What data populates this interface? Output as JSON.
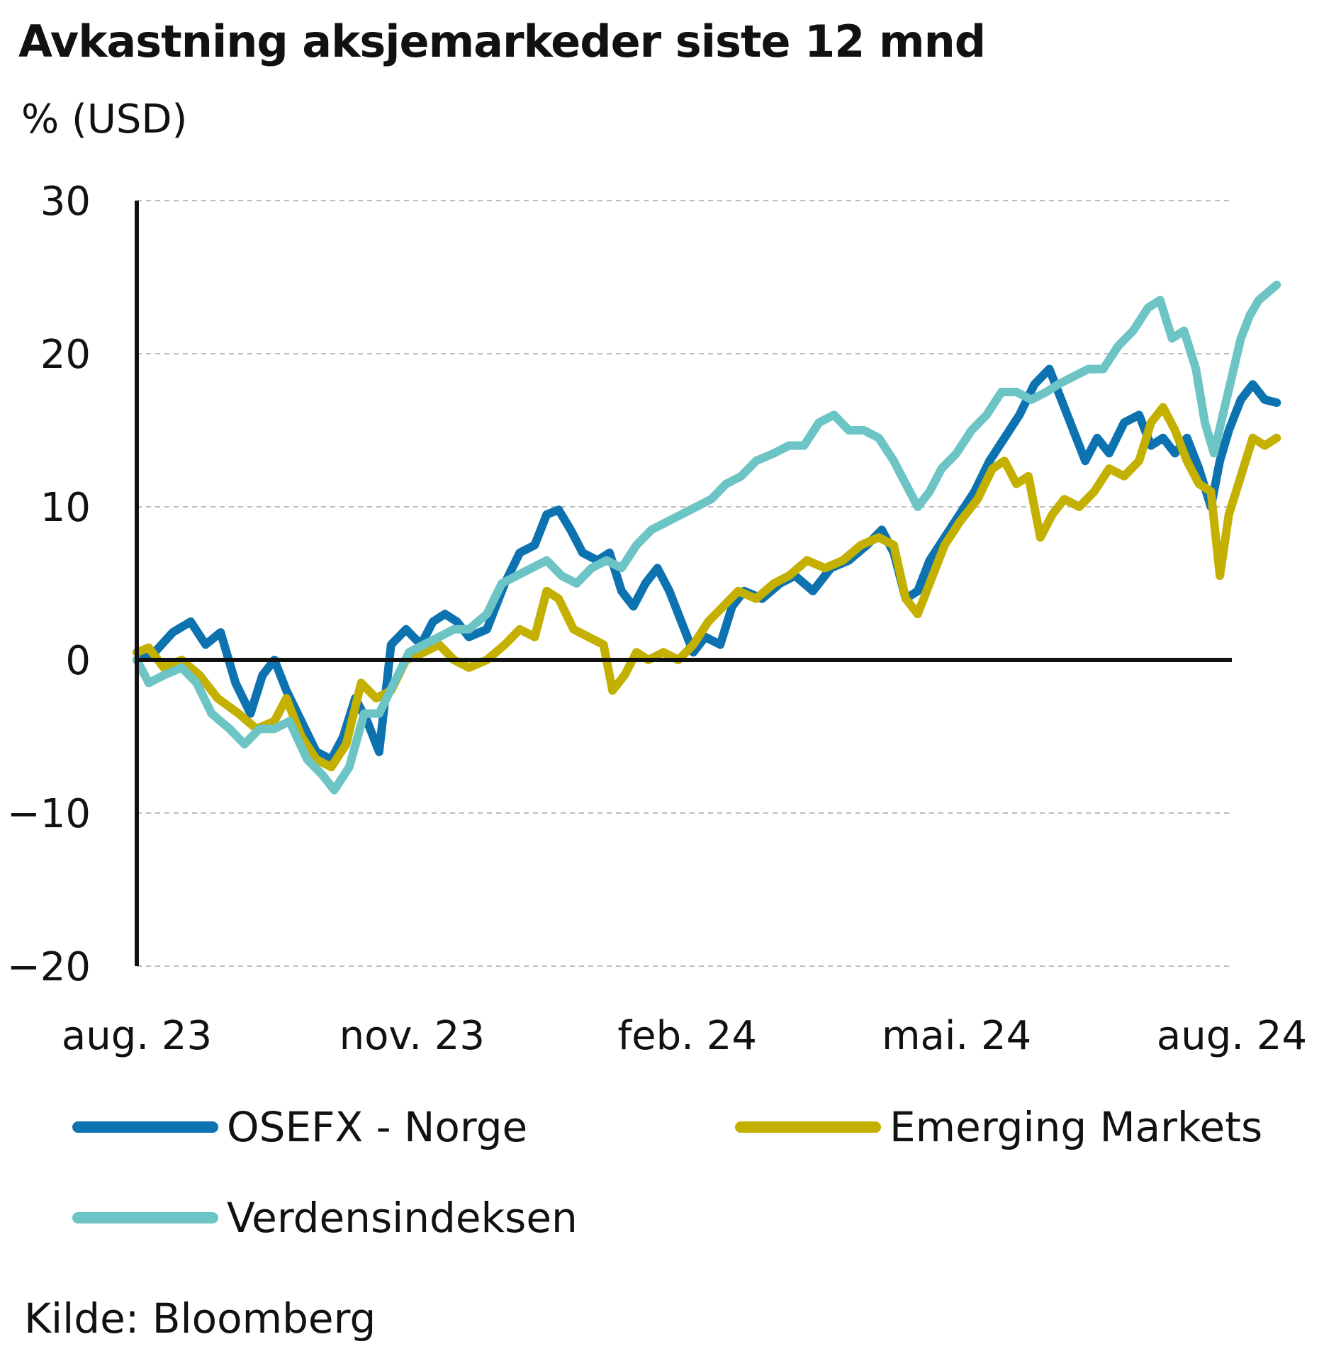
{
  "header": {
    "title": "Avkastning aksjemarkeder siste 12 mnd",
    "unit": "% (USD)"
  },
  "footer": {
    "source": "Kilde: Bloomberg"
  },
  "chart_data": {
    "type": "line",
    "title": "Avkastning aksjemarkeder siste 12 mnd",
    "ylabel": "% (USD)",
    "xlabel": "",
    "ylim": [
      -20,
      30
    ],
    "yticks": [
      30,
      20,
      10,
      0,
      -10,
      -20
    ],
    "xlim": [
      "2023-08-01",
      "2024-08-01"
    ],
    "xticks": [
      {
        "date": "2023-08-01",
        "label": "aug. 23"
      },
      {
        "date": "2023-11-01",
        "label": "nov. 23"
      },
      {
        "date": "2024-02-01",
        "label": "feb. 24"
      },
      {
        "date": "2024-05-01",
        "label": "mai. 24"
      },
      {
        "date": "2024-08-01",
        "label": "aug. 24"
      }
    ],
    "grid": "horizontal dashed",
    "legend_position": "bottom",
    "series": [
      {
        "name": "OSEFX - Norge",
        "color": "#0d72b0",
        "points": [
          [
            "2023-08-01",
            0
          ],
          [
            "2023-08-07",
            0.5
          ],
          [
            "2023-08-13",
            1.8
          ],
          [
            "2023-08-19",
            2.5
          ],
          [
            "2023-08-24",
            1.0
          ],
          [
            "2023-08-29",
            1.8
          ],
          [
            "2023-09-03",
            -1.5
          ],
          [
            "2023-09-08",
            -3.5
          ],
          [
            "2023-09-12",
            -1.0
          ],
          [
            "2023-09-16",
            0
          ],
          [
            "2023-09-20",
            -2.0
          ],
          [
            "2023-09-25",
            -4.0
          ],
          [
            "2023-09-30",
            -6.0
          ],
          [
            "2023-10-05",
            -6.5
          ],
          [
            "2023-10-09",
            -5.0
          ],
          [
            "2023-10-13",
            -2.5
          ],
          [
            "2023-10-17",
            -4.0
          ],
          [
            "2023-10-21",
            -6.0
          ],
          [
            "2023-10-25",
            1.0
          ],
          [
            "2023-10-30",
            2.0
          ],
          [
            "2023-11-04",
            1.0
          ],
          [
            "2023-11-08",
            2.5
          ],
          [
            "2023-11-12",
            3.0
          ],
          [
            "2023-11-16",
            2.5
          ],
          [
            "2023-11-20",
            1.5
          ],
          [
            "2023-11-26",
            2.0
          ],
          [
            "2023-12-02",
            5.0
          ],
          [
            "2023-12-07",
            7.0
          ],
          [
            "2023-12-12",
            7.5
          ],
          [
            "2023-12-16",
            9.5
          ],
          [
            "2023-12-20",
            9.8
          ],
          [
            "2023-12-24",
            8.5
          ],
          [
            "2023-12-28",
            7.0
          ],
          [
            "2024-01-02",
            6.5
          ],
          [
            "2024-01-06",
            7.0
          ],
          [
            "2024-01-10",
            4.5
          ],
          [
            "2024-01-14",
            3.5
          ],
          [
            "2024-01-18",
            5.0
          ],
          [
            "2024-01-22",
            6.0
          ],
          [
            "2024-01-26",
            4.5
          ],
          [
            "2024-01-30",
            2.5
          ],
          [
            "2024-02-03",
            0.5
          ],
          [
            "2024-02-07",
            1.5
          ],
          [
            "2024-02-12",
            1.0
          ],
          [
            "2024-02-16",
            3.5
          ],
          [
            "2024-02-20",
            4.5
          ],
          [
            "2024-02-26",
            4.0
          ],
          [
            "2024-03-03",
            5.0
          ],
          [
            "2024-03-08",
            5.5
          ],
          [
            "2024-03-14",
            4.5
          ],
          [
            "2024-03-20",
            6.0
          ],
          [
            "2024-03-26",
            6.5
          ],
          [
            "2024-04-01",
            7.5
          ],
          [
            "2024-04-06",
            8.5
          ],
          [
            "2024-04-10",
            7.0
          ],
          [
            "2024-04-14",
            4.0
          ],
          [
            "2024-04-18",
            4.5
          ],
          [
            "2024-04-22",
            6.5
          ],
          [
            "2024-04-27",
            8.0
          ],
          [
            "2024-05-02",
            9.5
          ],
          [
            "2024-05-07",
            11.0
          ],
          [
            "2024-05-12",
            13.0
          ],
          [
            "2024-05-17",
            14.5
          ],
          [
            "2024-05-22",
            16.0
          ],
          [
            "2024-05-27",
            18.0
          ],
          [
            "2024-06-01",
            19.0
          ],
          [
            "2024-06-05",
            17.0
          ],
          [
            "2024-06-09",
            15.0
          ],
          [
            "2024-06-13",
            13.0
          ],
          [
            "2024-06-17",
            14.5
          ],
          [
            "2024-06-21",
            13.5
          ],
          [
            "2024-06-26",
            15.5
          ],
          [
            "2024-07-01",
            16.0
          ],
          [
            "2024-07-05",
            14.0
          ],
          [
            "2024-07-09",
            14.5
          ],
          [
            "2024-07-13",
            13.5
          ],
          [
            "2024-07-17",
            14.5
          ],
          [
            "2024-07-21",
            12.5
          ],
          [
            "2024-07-25",
            10.0
          ],
          [
            "2024-07-28",
            13.0
          ],
          [
            "2024-07-31",
            15.0
          ],
          [
            "2024-08-04",
            17.0
          ],
          [
            "2024-08-08",
            18.0
          ],
          [
            "2024-08-12",
            17.0
          ],
          [
            "2024-08-16",
            16.8
          ]
        ]
      },
      {
        "name": "Emerging Markets",
        "color": "#c4b000",
        "points": [
          [
            "2023-08-01",
            0.5
          ],
          [
            "2023-08-05",
            0.8
          ],
          [
            "2023-08-10",
            -0.5
          ],
          [
            "2023-08-16",
            0
          ],
          [
            "2023-08-22",
            -1.0
          ],
          [
            "2023-08-28",
            -2.5
          ],
          [
            "2023-09-04",
            -3.5
          ],
          [
            "2023-09-10",
            -4.5
          ],
          [
            "2023-09-16",
            -4.0
          ],
          [
            "2023-09-20",
            -2.5
          ],
          [
            "2023-09-25",
            -5.0
          ],
          [
            "2023-09-30",
            -6.5
          ],
          [
            "2023-10-05",
            -7.0
          ],
          [
            "2023-10-10",
            -5.5
          ],
          [
            "2023-10-15",
            -1.5
          ],
          [
            "2023-10-20",
            -2.5
          ],
          [
            "2023-10-25",
            -2.0
          ],
          [
            "2023-10-30",
            0
          ],
          [
            "2023-11-05",
            0.5
          ],
          [
            "2023-11-10",
            1.0
          ],
          [
            "2023-11-15",
            0
          ],
          [
            "2023-11-20",
            -0.5
          ],
          [
            "2023-11-26",
            0
          ],
          [
            "2023-12-02",
            1.0
          ],
          [
            "2023-12-07",
            2.0
          ],
          [
            "2023-12-12",
            1.5
          ],
          [
            "2023-12-16",
            4.5
          ],
          [
            "2023-12-20",
            4.0
          ],
          [
            "2023-12-25",
            2.0
          ],
          [
            "2023-12-30",
            1.5
          ],
          [
            "2024-01-04",
            1.0
          ],
          [
            "2024-01-07",
            -2.0
          ],
          [
            "2024-01-11",
            -1.0
          ],
          [
            "2024-01-15",
            0.5
          ],
          [
            "2024-01-19",
            0
          ],
          [
            "2024-01-24",
            0.5
          ],
          [
            "2024-01-29",
            0
          ],
          [
            "2024-02-03",
            1.0
          ],
          [
            "2024-02-08",
            2.5
          ],
          [
            "2024-02-13",
            3.5
          ],
          [
            "2024-02-18",
            4.5
          ],
          [
            "2024-02-24",
            4.0
          ],
          [
            "2024-03-01",
            5.0
          ],
          [
            "2024-03-06",
            5.5
          ],
          [
            "2024-03-12",
            6.5
          ],
          [
            "2024-03-18",
            6.0
          ],
          [
            "2024-03-24",
            6.5
          ],
          [
            "2024-03-30",
            7.5
          ],
          [
            "2024-04-05",
            8.0
          ],
          [
            "2024-04-10",
            7.5
          ],
          [
            "2024-04-14",
            4.0
          ],
          [
            "2024-04-18",
            3.0
          ],
          [
            "2024-04-22",
            5.0
          ],
          [
            "2024-04-27",
            7.5
          ],
          [
            "2024-05-02",
            9.0
          ],
          [
            "2024-05-08",
            10.5
          ],
          [
            "2024-05-13",
            12.5
          ],
          [
            "2024-05-17",
            13.0
          ],
          [
            "2024-05-21",
            11.5
          ],
          [
            "2024-05-25",
            12.0
          ],
          [
            "2024-05-29",
            8.0
          ],
          [
            "2024-06-02",
            9.5
          ],
          [
            "2024-06-06",
            10.5
          ],
          [
            "2024-06-11",
            10.0
          ],
          [
            "2024-06-16",
            11.0
          ],
          [
            "2024-06-21",
            12.5
          ],
          [
            "2024-06-26",
            12.0
          ],
          [
            "2024-07-01",
            13.0
          ],
          [
            "2024-07-05",
            15.5
          ],
          [
            "2024-07-09",
            16.5
          ],
          [
            "2024-07-13",
            15.0
          ],
          [
            "2024-07-17",
            13.0
          ],
          [
            "2024-07-21",
            11.5
          ],
          [
            "2024-07-25",
            11.0
          ],
          [
            "2024-07-28",
            5.5
          ],
          [
            "2024-07-31",
            9.5
          ],
          [
            "2024-08-04",
            12.0
          ],
          [
            "2024-08-08",
            14.5
          ],
          [
            "2024-08-12",
            14.0
          ],
          [
            "2024-08-16",
            14.5
          ]
        ]
      },
      {
        "name": "Verdensindeksen",
        "color": "#6cc4c4",
        "points": [
          [
            "2023-08-01",
            0
          ],
          [
            "2023-08-05",
            -1.5
          ],
          [
            "2023-08-10",
            -1.0
          ],
          [
            "2023-08-16",
            -0.5
          ],
          [
            "2023-08-21",
            -1.5
          ],
          [
            "2023-08-26",
            -3.5
          ],
          [
            "2023-09-01",
            -4.5
          ],
          [
            "2023-09-06",
            -5.5
          ],
          [
            "2023-09-11",
            -4.5
          ],
          [
            "2023-09-16",
            -4.5
          ],
          [
            "2023-09-21",
            -4.0
          ],
          [
            "2023-09-27",
            -6.5
          ],
          [
            "2023-10-02",
            -7.5
          ],
          [
            "2023-10-06",
            -8.5
          ],
          [
            "2023-10-11",
            -7.0
          ],
          [
            "2023-10-16",
            -3.5
          ],
          [
            "2023-10-21",
            -3.5
          ],
          [
            "2023-10-26",
            -1.5
          ],
          [
            "2023-10-31",
            0.5
          ],
          [
            "2023-11-05",
            1.0
          ],
          [
            "2023-11-10",
            1.5
          ],
          [
            "2023-11-15",
            2.0
          ],
          [
            "2023-11-20",
            2.0
          ],
          [
            "2023-11-26",
            3.0
          ],
          [
            "2023-12-01",
            5.0
          ],
          [
            "2023-12-06",
            5.5
          ],
          [
            "2023-12-11",
            6.0
          ],
          [
            "2023-12-16",
            6.5
          ],
          [
            "2023-12-21",
            5.5
          ],
          [
            "2023-12-26",
            5.0
          ],
          [
            "2023-12-31",
            6.0
          ],
          [
            "2024-01-05",
            6.5
          ],
          [
            "2024-01-10",
            6.0
          ],
          [
            "2024-01-15",
            7.5
          ],
          [
            "2024-01-20",
            8.5
          ],
          [
            "2024-01-25",
            9.0
          ],
          [
            "2024-01-30",
            9.5
          ],
          [
            "2024-02-04",
            10.0
          ],
          [
            "2024-02-09",
            10.5
          ],
          [
            "2024-02-14",
            11.5
          ],
          [
            "2024-02-19",
            12.0
          ],
          [
            "2024-02-24",
            13.0
          ],
          [
            "2024-03-01",
            13.5
          ],
          [
            "2024-03-06",
            14.0
          ],
          [
            "2024-03-11",
            14.0
          ],
          [
            "2024-03-16",
            15.5
          ],
          [
            "2024-03-21",
            16.0
          ],
          [
            "2024-03-26",
            15.0
          ],
          [
            "2024-03-31",
            15.0
          ],
          [
            "2024-04-05",
            14.5
          ],
          [
            "2024-04-10",
            13.0
          ],
          [
            "2024-04-14",
            11.5
          ],
          [
            "2024-04-18",
            10.0
          ],
          [
            "2024-04-22",
            11.0
          ],
          [
            "2024-04-26",
            12.5
          ],
          [
            "2024-05-01",
            13.5
          ],
          [
            "2024-05-06",
            15.0
          ],
          [
            "2024-05-11",
            16.0
          ],
          [
            "2024-05-16",
            17.5
          ],
          [
            "2024-05-21",
            17.5
          ],
          [
            "2024-05-26",
            17.0
          ],
          [
            "2024-05-31",
            17.5
          ],
          [
            "2024-06-04",
            18.0
          ],
          [
            "2024-06-09",
            18.5
          ],
          [
            "2024-06-14",
            19.0
          ],
          [
            "2024-06-19",
            19.0
          ],
          [
            "2024-06-24",
            20.5
          ],
          [
            "2024-06-29",
            21.5
          ],
          [
            "2024-07-04",
            23.0
          ],
          [
            "2024-07-08",
            23.5
          ],
          [
            "2024-07-12",
            21.0
          ],
          [
            "2024-07-16",
            21.5
          ],
          [
            "2024-07-20",
            19.0
          ],
          [
            "2024-07-23",
            15.5
          ],
          [
            "2024-07-26",
            13.5
          ],
          [
            "2024-07-29",
            16.0
          ],
          [
            "2024-08-01",
            18.5
          ],
          [
            "2024-08-04",
            21.0
          ],
          [
            "2024-08-07",
            22.5
          ],
          [
            "2024-08-10",
            23.5
          ],
          [
            "2024-08-13",
            24.0
          ],
          [
            "2024-08-16",
            24.5
          ]
        ]
      }
    ]
  }
}
